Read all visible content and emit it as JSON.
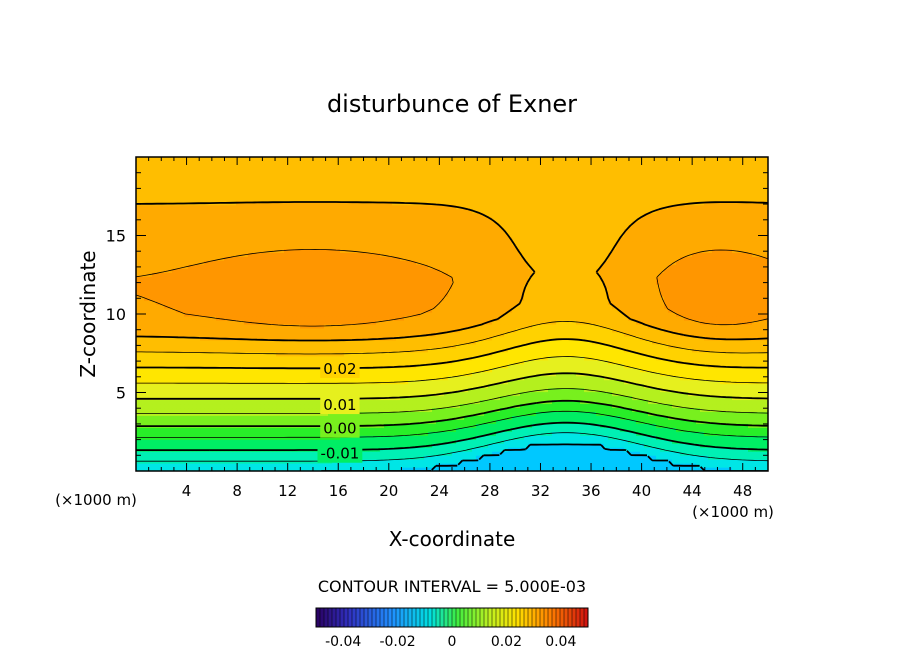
{
  "chart_data": {
    "type": "contour",
    "title": "disturbunce of Exner",
    "xlabel": "X-coordinate",
    "ylabel": "Z-coordinate",
    "x_units_left": "(×1000 m)",
    "x_units_right": "(×1000 m)",
    "xlim": [
      0,
      50
    ],
    "ylim": [
      0,
      20
    ],
    "xticks": [
      "4",
      "8",
      "12",
      "16",
      "20",
      "24",
      "28",
      "32",
      "36",
      "40",
      "44",
      "48"
    ],
    "yticks": [
      "5",
      "10",
      "15"
    ],
    "contour_interval_text": "CONTOUR INTERVAL = 5.000E-03",
    "contour_labels": [
      {
        "text": "0.02",
        "level": 0.02
      },
      {
        "text": "0.01",
        "level": 0.01
      },
      {
        "text": "0.00",
        "level": 0.0
      },
      {
        "text": "-0.01",
        "level": -0.01
      }
    ],
    "colorbar": {
      "range": [
        -0.05,
        0.05
      ],
      "tick_labels": [
        "-0.04",
        "-0.02",
        "0",
        "0.02",
        "0.04"
      ],
      "tick_values": [
        -0.04,
        -0.02,
        0,
        0.02,
        0.04
      ]
    },
    "field": {
      "base_profile_levels_at_z": {
        "z": [
          0,
          1,
          2,
          3,
          4,
          5,
          6,
          7,
          8,
          9,
          10,
          12,
          14,
          16,
          18,
          20
        ],
        "value": [
          -0.02,
          -0.012,
          -0.006,
          0.001,
          0.007,
          0.012,
          0.017,
          0.022,
          0.027,
          0.032,
          0.034,
          0.035,
          0.033,
          0.031,
          0.029,
          0.028
        ]
      },
      "hill_center_x": 34,
      "max_regions": [
        {
          "x": 14,
          "z": 11.5
        },
        {
          "x": 46,
          "z": 11.5
        }
      ]
    }
  }
}
